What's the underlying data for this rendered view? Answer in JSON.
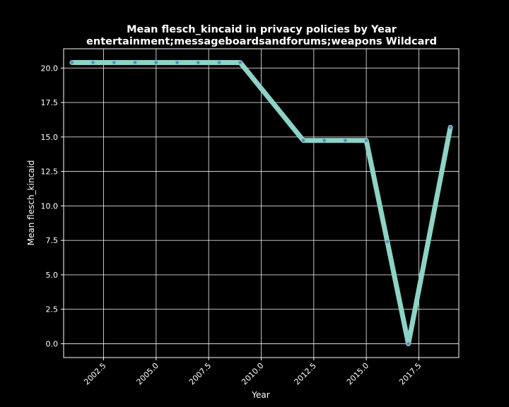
{
  "chart_data": {
    "type": "line",
    "title": "Mean flesch_kincaid in privacy policies by Year",
    "subtitle": "entertainment;messageboardsandforums;weapons Wildcard",
    "xlabel": "Year",
    "ylabel": "Mean flesch_kincaid",
    "xlim": [
      2000.6,
      2019.4
    ],
    "ylim": [
      -1.0,
      21.4
    ],
    "x_ticks": [
      2002.5,
      2005.0,
      2007.5,
      2010.0,
      2012.5,
      2015.0,
      2017.5
    ],
    "x_tick_labels": [
      "2002.5",
      "2005.0",
      "2007.5",
      "2010.0",
      "2012.5",
      "2015.0",
      "2017.5"
    ],
    "y_ticks": [
      0.0,
      2.5,
      5.0,
      7.5,
      10.0,
      12.5,
      15.0,
      17.5,
      20.0
    ],
    "y_tick_labels": [
      "0.0",
      "2.5",
      "5.0",
      "7.5",
      "10.0",
      "12.5",
      "15.0",
      "17.5",
      "20.0"
    ],
    "grid": true,
    "series": [
      {
        "x": [
          2001,
          2002,
          2003,
          2004,
          2005,
          2006,
          2007,
          2008,
          2009,
          2012,
          2013,
          2014,
          2015,
          2016,
          2017,
          2019
        ],
        "y": [
          20.4,
          20.4,
          20.4,
          20.4,
          20.4,
          20.4,
          20.4,
          20.4,
          20.4,
          14.75,
          14.75,
          14.75,
          14.75,
          7.4,
          0.0,
          15.7
        ],
        "line_color": "#8dd3c7",
        "marker_color": "#5b7fb8",
        "marker": "star"
      }
    ],
    "background_color": "#000000",
    "text_color": "#ffffff",
    "grid_color": "#ffffff"
  }
}
